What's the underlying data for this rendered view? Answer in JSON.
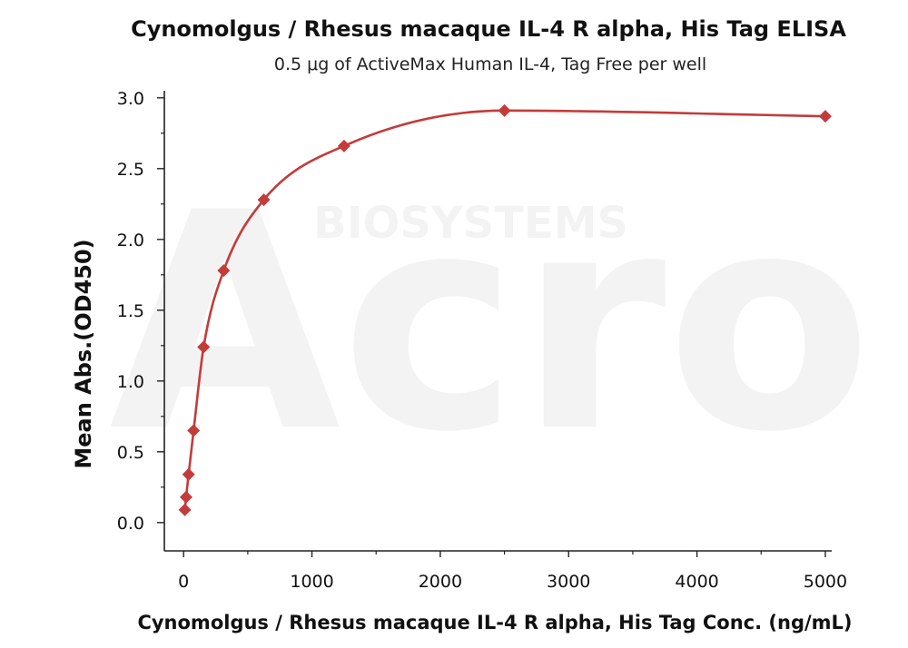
{
  "chart_data": {
    "type": "scatter",
    "title": "Cynomolgus / Rhesus macaque IL-4 R alpha, His Tag ELISA",
    "subtitle": "0.5 μg of ActiveMax Human IL-4, Tag Free per well",
    "xlabel": "Cynomolgus / Rhesus macaque IL-4 R alpha, His Tag Conc. (ng/mL)",
    "ylabel": "Mean Abs.(OD450)",
    "xlim": [
      -150,
      5050
    ],
    "ylim": [
      -0.2,
      3.05
    ],
    "xticks": [
      0,
      1000,
      2000,
      3000,
      4000,
      5000
    ],
    "yticks": [
      0.0,
      0.5,
      1.0,
      1.5,
      2.0,
      2.5,
      3.0
    ],
    "xtick_labels": [
      "0",
      "1000",
      "2000",
      "3000",
      "4000",
      "5000"
    ],
    "ytick_labels": [
      "0.0",
      "0.5",
      "1.0",
      "1.5",
      "2.0",
      "2.5",
      "3.0"
    ],
    "grid": false,
    "legend": "none",
    "series": [
      {
        "x": [
          9.8,
          19.5,
          39,
          78,
          156,
          312.5,
          625,
          1250,
          2500,
          5000
        ],
        "y": [
          0.09,
          0.18,
          0.34,
          0.65,
          1.24,
          1.78,
          2.28,
          2.66,
          2.91,
          2.87
        ],
        "marker": "diamond",
        "color": "#c33c3a",
        "fit": "smooth curve"
      }
    ],
    "watermark": {
      "logo_text": "Acro",
      "sub_text": "BIOSYSTEMS"
    }
  }
}
